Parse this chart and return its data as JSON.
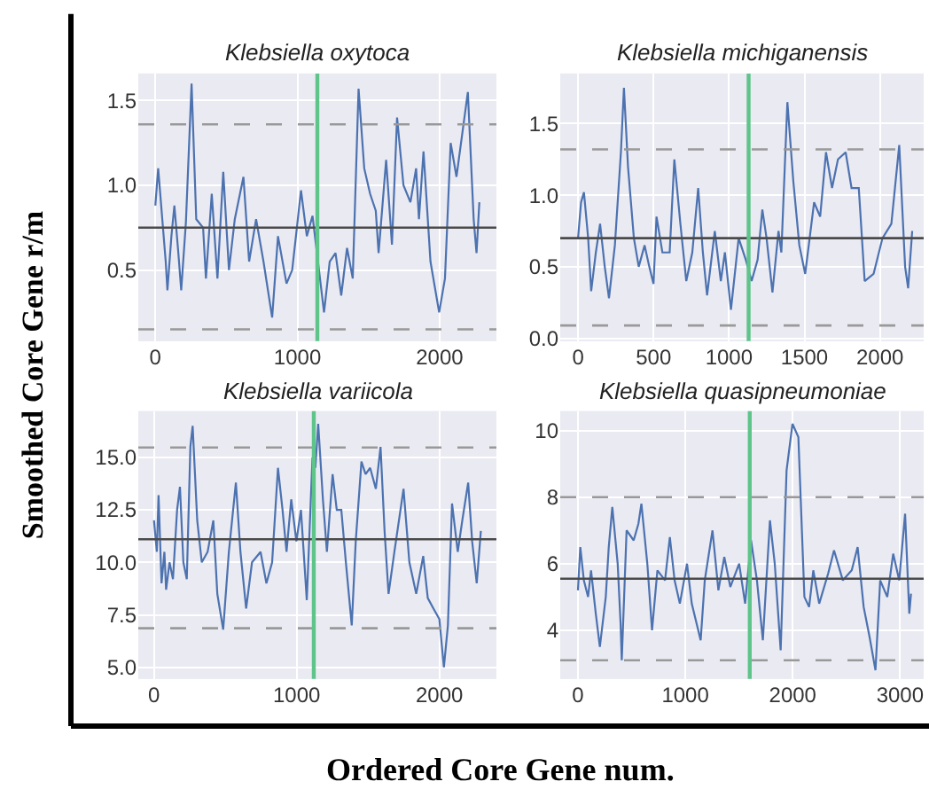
{
  "chart_data": [
    {
      "type": "line",
      "title": "Klebsiella oxytoca",
      "xlabel": "Ordered Core Gene num.",
      "ylabel": "Smoothed Core Gene r/m",
      "grid": true,
      "x": [
        0,
        20,
        73,
        85,
        113,
        134,
        162,
        182,
        215,
        255,
        288,
        336,
        356,
        397,
        437,
        478,
        518,
        559,
        620,
        660,
        709,
        761,
        822,
        863,
        923,
        963,
        1025,
        1066,
        1106,
        1187,
        1227,
        1268,
        1308,
        1349,
        1389,
        1430,
        1470,
        1511,
        1551,
        1571,
        1624,
        1665,
        1701,
        1746,
        1795,
        1835,
        1855,
        1887,
        1936,
        1997,
        2038,
        2078,
        2119,
        2199,
        2240,
        2260,
        2280
      ],
      "series": [
        {
          "color": "#4c72b0",
          "values": [
            0.88,
            1.1,
            0.55,
            0.38,
            0.7,
            0.88,
            0.6,
            0.38,
            0.78,
            1.6,
            0.8,
            0.75,
            0.45,
            0.95,
            0.45,
            1.08,
            0.5,
            0.8,
            1.05,
            0.55,
            0.8,
            0.55,
            0.22,
            0.7,
            0.42,
            0.5,
            0.97,
            0.7,
            0.82,
            0.25,
            0.55,
            0.6,
            0.35,
            0.63,
            0.45,
            1.57,
            1.1,
            0.95,
            0.85,
            0.6,
            1.15,
            0.65,
            1.4,
            1.0,
            0.9,
            1.1,
            0.8,
            1.2,
            0.55,
            0.25,
            0.45,
            1.25,
            1.05,
            1.55,
            0.8,
            0.6,
            0.9
          ]
        }
      ],
      "xlim": [
        -120,
        2400
      ],
      "ylim": [
        0.08,
        1.66
      ],
      "xticks": [
        0,
        1000,
        2000
      ],
      "yticks": [
        0.5,
        {
          "value": 1,
          "label": "1.0"
        },
        1.5
      ],
      "ref_lines": [
        {
          "axis": "y",
          "value": 0.75,
          "color": "#4a4a4a",
          "line_style": "solid"
        },
        {
          "axis": "y",
          "value": 1.36,
          "color": "#999999",
          "line_style": "dashed"
        },
        {
          "axis": "y",
          "value": 0.15,
          "color": "#999999",
          "line_style": "dashed"
        },
        {
          "axis": "x",
          "value": 1140,
          "color": "#5ec48a",
          "line_style": "solid"
        }
      ]
    },
    {
      "type": "line",
      "title": "Klebsiella michiganensis",
      "grid": true,
      "x": [
        0,
        20,
        39,
        67,
        87,
        118,
        146,
        177,
        205,
        244,
        284,
        304,
        331,
        370,
        402,
        441,
        472,
        500,
        520,
        559,
        607,
        638,
        678,
        717,
        757,
        796,
        827,
        855,
        906,
        946,
        973,
        1013,
        1064,
        1111,
        1150,
        1190,
        1221,
        1249,
        1288,
        1328,
        1347,
        1387,
        1426,
        1466,
        1505,
        1564,
        1604,
        1643,
        1683,
        1722,
        1773,
        1812,
        1860,
        1899,
        1958,
        2017,
        2076,
        2128,
        2167,
        2187,
        2214
      ],
      "series": [
        {
          "color": "#4c72b0",
          "values": [
            0.7,
            0.95,
            1.02,
            0.7,
            0.33,
            0.6,
            0.8,
            0.5,
            0.28,
            0.65,
            1.3,
            1.75,
            1.2,
            0.7,
            0.5,
            0.65,
            0.5,
            0.38,
            0.85,
            0.6,
            0.6,
            1.25,
            0.8,
            0.4,
            0.6,
            1.05,
            0.6,
            0.3,
            0.75,
            0.4,
            0.6,
            0.2,
            0.7,
            0.55,
            0.4,
            0.55,
            0.9,
            0.7,
            0.32,
            0.75,
            0.6,
            1.65,
            1.1,
            0.65,
            0.45,
            0.95,
            0.85,
            1.3,
            1.05,
            1.25,
            1.3,
            1.05,
            1.05,
            0.4,
            0.45,
            0.7,
            0.8,
            1.35,
            0.5,
            0.35,
            0.75
          ]
        }
      ],
      "xlim": [
        -118,
        2290
      ],
      "ylim": [
        -0.02,
        1.85
      ],
      "xticks": [
        0,
        500,
        1000,
        1500,
        2000
      ],
      "yticks": [
        {
          "value": 0,
          "label": "0.0"
        },
        0.5,
        {
          "value": 1,
          "label": "1.0"
        },
        1.5
      ],
      "ref_lines": [
        {
          "axis": "y",
          "value": 0.7,
          "color": "#4a4a4a",
          "line_style": "solid"
        },
        {
          "axis": "y",
          "value": 1.32,
          "color": "#999999",
          "line_style": "dashed"
        },
        {
          "axis": "y",
          "value": 0.09,
          "color": "#999999",
          "line_style": "dashed"
        },
        {
          "axis": "x",
          "value": 1130,
          "color": "#5ec48a",
          "line_style": "solid"
        }
      ]
    },
    {
      "type": "line",
      "title": "Klebsiella variicola",
      "grid": true,
      "x": [
        0,
        20,
        32,
        53,
        73,
        85,
        109,
        133,
        162,
        182,
        206,
        230,
        255,
        271,
        303,
        335,
        376,
        416,
        444,
        485,
        525,
        574,
        606,
        646,
        687,
        747,
        788,
        828,
        869,
        901,
        929,
        962,
        998,
        1030,
        1071,
        1111,
        1131,
        1151,
        1184,
        1212,
        1252,
        1281,
        1313,
        1345,
        1386,
        1414,
        1454,
        1483,
        1515,
        1555,
        1588,
        1616,
        1644,
        1685,
        1749,
        1790,
        1838,
        1887,
        1919,
        1959,
        2000,
        2032,
        2060,
        2089,
        2129,
        2161,
        2202,
        2230,
        2262,
        2291
      ],
      "series": [
        {
          "color": "#4c72b0",
          "values": [
            12,
            10.5,
            13.2,
            9,
            10.5,
            8.7,
            10,
            9.2,
            12.5,
            13.6,
            10,
            9.2,
            15.5,
            16.5,
            12,
            10,
            10.5,
            12,
            8.5,
            6.8,
            10.5,
            13.8,
            10.5,
            7.8,
            10,
            10.5,
            9,
            10,
            14.5,
            12.5,
            10.5,
            13,
            11,
            12.5,
            8.2,
            15,
            14.5,
            16.6,
            13,
            10.5,
            14.2,
            12.5,
            12.5,
            10,
            7,
            11,
            14.8,
            14.2,
            14.5,
            13.5,
            15.5,
            11.5,
            8.5,
            10.5,
            13.5,
            10,
            8.5,
            10.3,
            8.3,
            7.8,
            7.3,
            5,
            7,
            12.8,
            10.5,
            12,
            13.8,
            11,
            9,
            11.5
          ]
        }
      ],
      "xlim": [
        -110,
        2400
      ],
      "ylim": [
        4.45,
        17.2
      ],
      "xticks": [
        0,
        1000,
        2000
      ],
      "yticks": [
        {
          "value": 5,
          "label": "5.0"
        },
        7.5,
        {
          "value": 10,
          "label": "10.0"
        },
        12.5,
        {
          "value": 15,
          "label": "15.0"
        }
      ],
      "ref_lines": [
        {
          "axis": "y",
          "value": 11.1,
          "color": "#4a4a4a",
          "line_style": "solid"
        },
        {
          "axis": "y",
          "value": 15.47,
          "color": "#999999",
          "line_style": "dashed"
        },
        {
          "axis": "y",
          "value": 6.86,
          "color": "#999999",
          "line_style": "dashed"
        },
        {
          "axis": "x",
          "value": 1120,
          "color": "#5ec48a",
          "line_style": "solid"
        }
      ]
    },
    {
      "type": "line",
      "title": "Klebsiella quasipneumoniae",
      "grid": true,
      "x": [
        0,
        22,
        55,
        94,
        122,
        166,
        204,
        259,
        287,
        320,
        370,
        397,
        408,
        453,
        519,
        563,
        591,
        646,
        690,
        740,
        811,
        856,
        900,
        949,
        1016,
        1060,
        1143,
        1181,
        1253,
        1308,
        1363,
        1419,
        1501,
        1557,
        1612,
        1667,
        1722,
        1788,
        1833,
        1888,
        1943,
        1998,
        2053,
        2109,
        2153,
        2192,
        2247,
        2330,
        2385,
        2467,
        2550,
        2605,
        2661,
        2716,
        2771,
        2815,
        2881,
        2936,
        2992,
        3047,
        3086,
        3102
      ],
      "series": [
        {
          "color": "#4c72b0",
          "values": [
            5.2,
            6.5,
            5.5,
            5,
            5.8,
            4.5,
            3.5,
            5,
            6.5,
            7.7,
            6,
            4.2,
            3.1,
            7,
            6.7,
            7.2,
            7.8,
            6,
            4,
            5.8,
            5.5,
            6.8,
            5.5,
            4.8,
            6,
            4.8,
            3.7,
            5.5,
            7,
            5.2,
            6.2,
            5.3,
            6,
            4.8,
            6.7,
            5.5,
            3.7,
            7.3,
            6,
            3.4,
            8.8,
            10.2,
            9.8,
            5,
            4.7,
            5.8,
            4.8,
            5.7,
            6.4,
            5.5,
            5.8,
            6.5,
            4.7,
            3.8,
            2.8,
            5.5,
            5,
            6.3,
            5.5,
            7.5,
            4.5,
            5.1
          ]
        }
      ],
      "xlim": [
        -165,
        3220
      ],
      "ylim": [
        2.54,
        10.58
      ],
      "xticks": [
        0,
        1000,
        2000,
        3000
      ],
      "yticks": [
        4,
        6,
        8,
        10
      ],
      "ref_lines": [
        {
          "axis": "y",
          "value": 5.55,
          "color": "#4a4a4a",
          "line_style": "solid"
        },
        {
          "axis": "y",
          "value": 8.0,
          "color": "#999999",
          "line_style": "dashed"
        },
        {
          "axis": "y",
          "value": 3.1,
          "color": "#999999",
          "line_style": "dashed"
        },
        {
          "axis": "x",
          "value": 1600,
          "color": "#5ec48a",
          "line_style": "solid"
        }
      ]
    }
  ]
}
